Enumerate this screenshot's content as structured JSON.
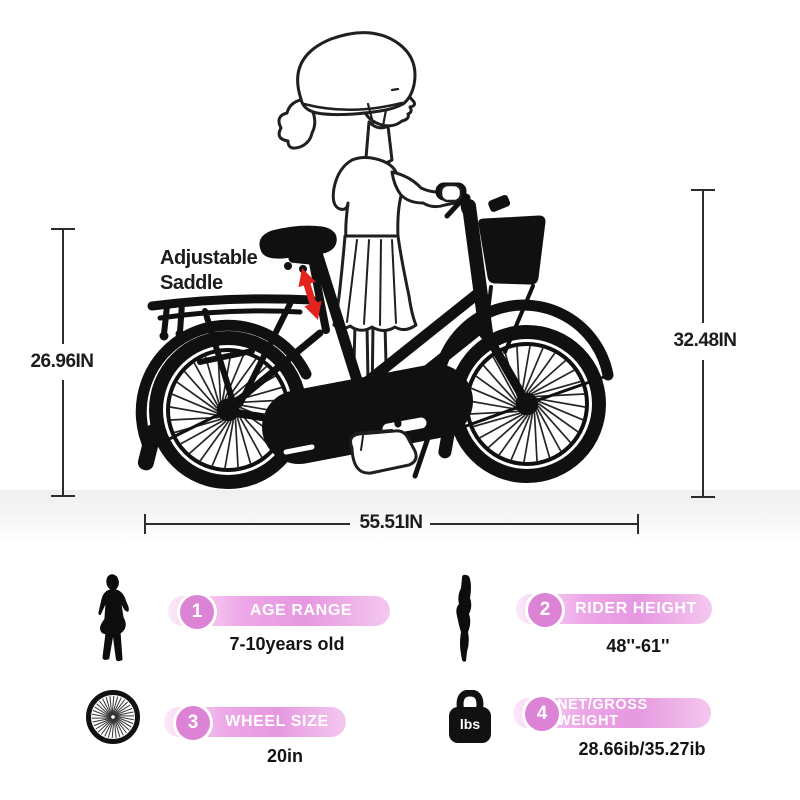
{
  "colors": {
    "accent": "#dd83d6",
    "pillA": "#fbeaf8",
    "pillB": "#eda7e7",
    "pillC": "#e698e0",
    "pillD": "#f4c8ef",
    "arrow": "#e3231c"
  },
  "illustration": {
    "note_line1": "Adjustable",
    "note_line2": "Saddle",
    "dim_seat_height": "26.96IN",
    "dim_handlebar_height": "32.48IN",
    "dim_length": "55.51IN"
  },
  "specs": {
    "items": [
      {
        "num": "1",
        "label": "AGE RANGE",
        "value": "7-10years old",
        "icon": "girl-silhouette-icon"
      },
      {
        "num": "2",
        "label": "RIDER HEIGHT",
        "value": "48''-61''",
        "icon": "rider-height-icon"
      },
      {
        "num": "3",
        "label": "WHEEL SIZE",
        "value": "20in",
        "icon": "wheel-icon"
      },
      {
        "num": "4",
        "label": "NET/GROSS WEIGHT",
        "value": "28.66ib/35.27ib",
        "icon": "weight-icon"
      }
    ],
    "weight_icon_text": "lbs"
  }
}
